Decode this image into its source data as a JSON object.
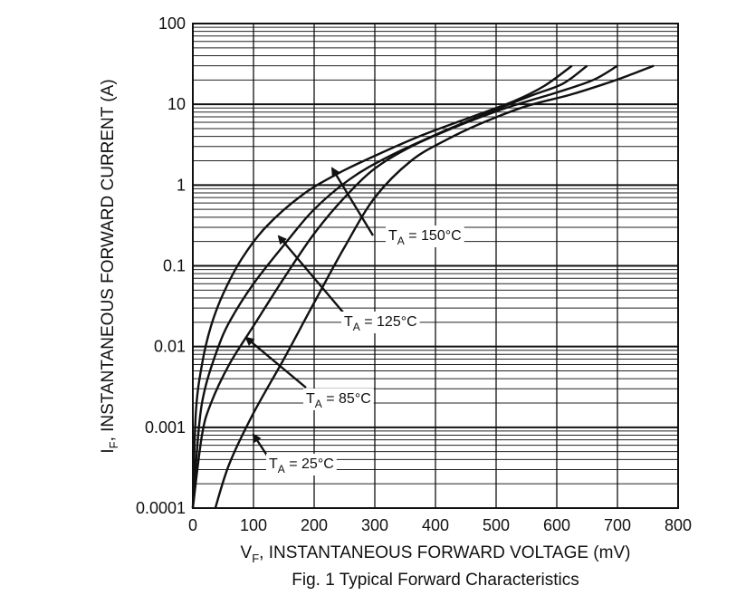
{
  "chart_data": {
    "type": "line",
    "xlabel_main": "V",
    "xlabel_sub": "F",
    "xlabel_rest": ", INSTANTANEOUS FORWARD VOLTAGE (mV)",
    "ylabel_main": "I",
    "ylabel_sub": "F",
    "ylabel_rest": ", INSTANTANEOUS FORWARD CURRENT (A)",
    "caption": "Fig. 1  Typical Forward Characteristics",
    "x_scale": "linear",
    "y_scale": "log",
    "xlim": [
      0,
      800
    ],
    "ylim": [
      0.0001,
      100
    ],
    "x_ticks": [
      "0",
      "100",
      "200",
      "300",
      "400",
      "500",
      "600",
      "700",
      "800"
    ],
    "y_ticks": [
      "0.0001",
      "0.001",
      "0.01",
      "0.1",
      "1",
      "10",
      "100"
    ],
    "grid": "log minor horizontal, major vertical",
    "series": [
      {
        "name": "T_A = 150°C",
        "label_main": "T",
        "label_sub": "A",
        "label_rest": " = 150°C",
        "points": [
          [
            0,
            0.0001
          ],
          [
            5,
            0.0015
          ],
          [
            15,
            0.006
          ],
          [
            30,
            0.018
          ],
          [
            50,
            0.045
          ],
          [
            80,
            0.12
          ],
          [
            120,
            0.3
          ],
          [
            180,
            0.75
          ],
          [
            240,
            1.4
          ],
          [
            300,
            2.3
          ],
          [
            380,
            4.2
          ],
          [
            460,
            7.0
          ],
          [
            530,
            11
          ],
          [
            580,
            17
          ],
          [
            625,
            30
          ]
        ]
      },
      {
        "name": "T_A = 125°C",
        "label_main": "T",
        "label_sub": "A",
        "label_rest": " = 125°C",
        "points": [
          [
            0,
            0.0001
          ],
          [
            10,
            0.001
          ],
          [
            20,
            0.003
          ],
          [
            40,
            0.009
          ],
          [
            60,
            0.02
          ],
          [
            100,
            0.06
          ],
          [
            150,
            0.18
          ],
          [
            200,
            0.5
          ],
          [
            260,
            1.2
          ],
          [
            320,
            2.2
          ],
          [
            400,
            4.2
          ],
          [
            480,
            7.5
          ],
          [
            560,
            13
          ],
          [
            610,
            18
          ],
          [
            650,
            30
          ]
        ]
      },
      {
        "name": "T_A = 85°C",
        "label_main": "T",
        "label_sub": "A",
        "label_rest": " = 85°C",
        "points": [
          [
            0,
            0.0001
          ],
          [
            15,
            0.0008
          ],
          [
            30,
            0.002
          ],
          [
            60,
            0.006
          ],
          [
            100,
            0.018
          ],
          [
            150,
            0.07
          ],
          [
            200,
            0.25
          ],
          [
            250,
            0.7
          ],
          [
            300,
            1.6
          ],
          [
            360,
            3.0
          ],
          [
            440,
            5.5
          ],
          [
            520,
            9.2
          ],
          [
            600,
            14
          ],
          [
            660,
            20
          ],
          [
            700,
            30
          ]
        ]
      },
      {
        "name": "T_A = 25°C",
        "label_main": "T",
        "label_sub": "A",
        "label_rest": " = 25°C",
        "points": [
          [
            37,
            0.0001
          ],
          [
            60,
            0.00035
          ],
          [
            100,
            0.0015
          ],
          [
            150,
            0.007
          ],
          [
            200,
            0.035
          ],
          [
            250,
            0.17
          ],
          [
            300,
            0.7
          ],
          [
            360,
            2.0
          ],
          [
            420,
            3.7
          ],
          [
            480,
            6.0
          ],
          [
            550,
            9.5
          ],
          [
            620,
            13
          ],
          [
            680,
            18
          ],
          [
            720,
            23
          ],
          [
            760,
            30
          ]
        ]
      }
    ]
  }
}
